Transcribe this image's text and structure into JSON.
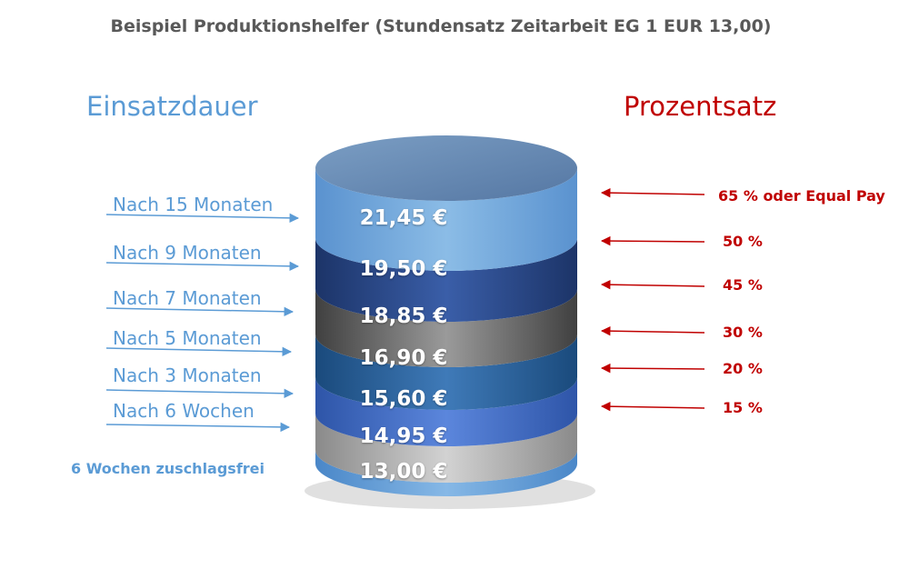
{
  "title": "Beispiel Produktionshelfer (Stundensatz Zeitarbeit EG 1 EUR 13,00)",
  "headings": {
    "left": "Einsatzdauer",
    "right": "Prozentsatz"
  },
  "durations": [
    "Nach 15 Monaten",
    "Nach 9 Monaten",
    "Nach 7 Monaten",
    "Nach 5 Monaten",
    "Nach 3 Monaten",
    "Nach 6 Wochen"
  ],
  "base_label": "6 Wochen zuschlagsfrei",
  "percentages": [
    "65 % oder Equal Pay",
    "50 %",
    "45 %",
    "30 %",
    "20 %",
    "15 %"
  ],
  "values": [
    "21,45 €",
    "19,50 €",
    "18,85 €",
    "16,90 €",
    "15,60 €",
    "14,95 €",
    "13,00 €"
  ],
  "colors": {
    "left_text": "#5b9bd5",
    "right_text": "#c00000",
    "title": "#595959"
  }
}
